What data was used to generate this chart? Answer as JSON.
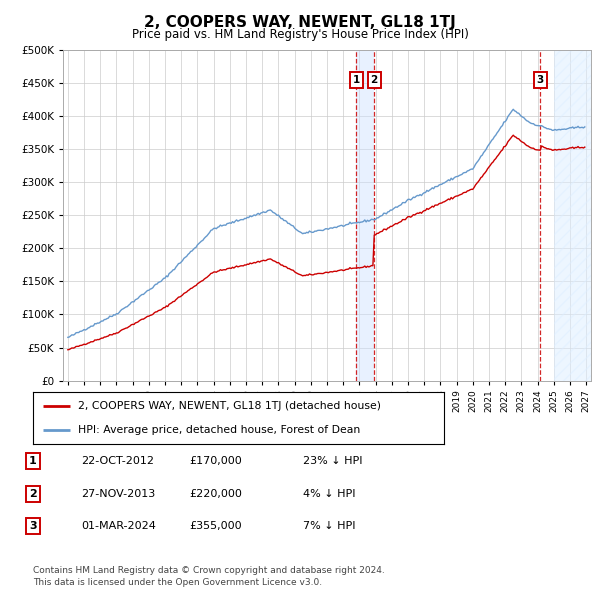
{
  "title": "2, COOPERS WAY, NEWENT, GL18 1TJ",
  "subtitle": "Price paid vs. HM Land Registry's House Price Index (HPI)",
  "ylim": [
    0,
    500000
  ],
  "yticks": [
    0,
    50000,
    100000,
    150000,
    200000,
    250000,
    300000,
    350000,
    400000,
    450000,
    500000
  ],
  "ytick_labels": [
    "£0",
    "£50K",
    "£100K",
    "£150K",
    "£200K",
    "£250K",
    "£300K",
    "£350K",
    "£400K",
    "£450K",
    "£500K"
  ],
  "xlim_start": 1994.7,
  "xlim_end": 2027.3,
  "hpi_color": "#6699cc",
  "price_color": "#cc0000",
  "transaction1_date": 2012.81,
  "transaction1_price": 170000,
  "transaction2_date": 2013.91,
  "transaction2_price": 220000,
  "transaction3_date": 2024.17,
  "transaction3_price": 355000,
  "legend_label1": "2, COOPERS WAY, NEWENT, GL18 1TJ (detached house)",
  "legend_label2": "HPI: Average price, detached house, Forest of Dean",
  "table_rows": [
    {
      "num": "1",
      "date": "22-OCT-2012",
      "price": "£170,000",
      "hpi": "23% ↓ HPI"
    },
    {
      "num": "2",
      "date": "27-NOV-2013",
      "price": "£220,000",
      "hpi": "4% ↓ HPI"
    },
    {
      "num": "3",
      "date": "01-MAR-2024",
      "price": "£355,000",
      "hpi": "7% ↓ HPI"
    }
  ],
  "footnote": "Contains HM Land Registry data © Crown copyright and database right 2024.\nThis data is licensed under the Open Government Licence v3.0.",
  "background_color": "#ffffff",
  "grid_color": "#cccccc",
  "forecast_start": 2025.0
}
